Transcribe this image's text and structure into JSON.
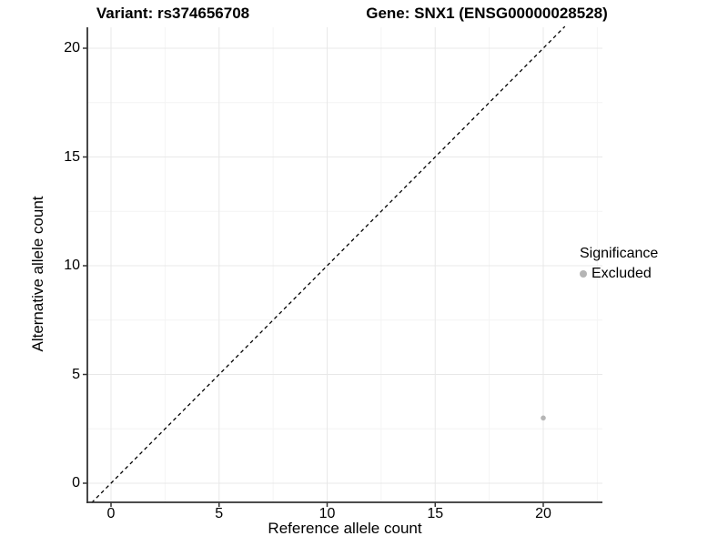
{
  "header": {
    "left_title": "Variant: rs374656708",
    "right_title": "Gene: SNX1 (ENSG00000028528)"
  },
  "axes": {
    "x": {
      "label": "Reference allele count"
    },
    "y": {
      "label": "Alternative allele count"
    }
  },
  "legend": {
    "title": "Significance",
    "items": [
      {
        "label": "Excluded",
        "color": "#b5b5b5"
      }
    ]
  },
  "colors": {
    "background": "#ffffff",
    "text": "#000000",
    "axis_line": "#333333",
    "tick_mark": "#333333",
    "grid_major": "#e8e8e8",
    "grid_minor": "#f4f4f4",
    "point": "#b5b5b5",
    "reference_line": "#000000"
  },
  "chart_data": {
    "type": "scatter",
    "title": "Variant: rs374656708   Gene: SNX1 (ENSG00000028528)",
    "xlabel": "Reference allele count",
    "ylabel": "Alternative allele count",
    "x_ticks": [
      0,
      5,
      10,
      15,
      20
    ],
    "y_ticks": [
      0,
      5,
      10,
      15,
      20
    ],
    "xlim": [
      -1.1,
      22.7
    ],
    "ylim": [
      -0.9,
      21.0
    ],
    "grid": true,
    "legend_position": "right",
    "series": [
      {
        "name": "Excluded",
        "color": "#b5b5b5",
        "points": [
          {
            "x": 20,
            "y": 3
          }
        ]
      }
    ],
    "reference_line": {
      "kind": "identity",
      "equation": "y = x",
      "style": "dashed",
      "color": "#000000"
    }
  }
}
